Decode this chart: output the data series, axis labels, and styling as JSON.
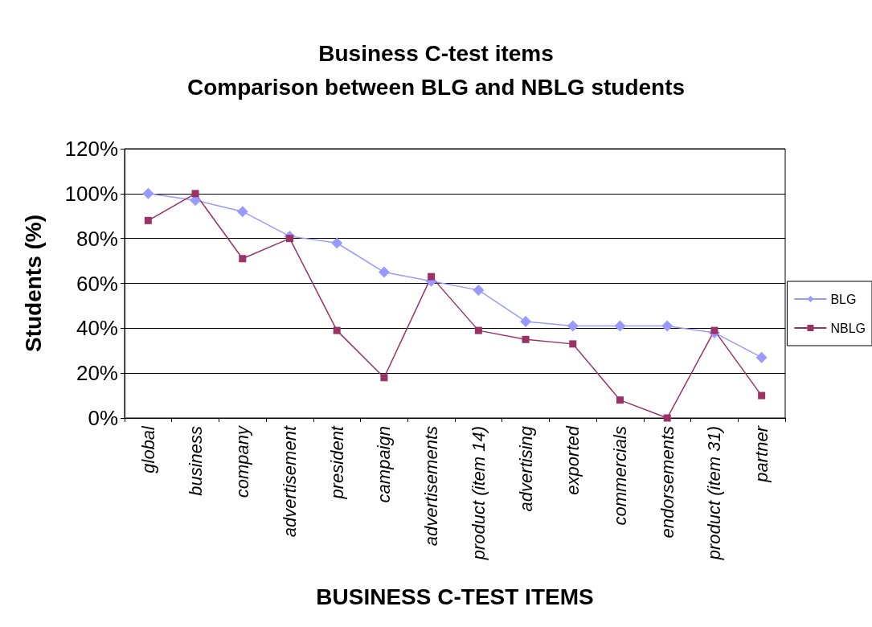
{
  "chart_data": {
    "type": "line",
    "title": "Business C-test items\nComparison between BLG and NBLG students",
    "xlabel": "BUSINESS C-TEST ITEMS",
    "ylabel": "Students (%)",
    "categories": [
      "global",
      "business",
      "company",
      "advertisement",
      "president",
      "campaign",
      "advertisements",
      "product (item 14)",
      "advertising",
      "exported",
      "commercials",
      "endorsements",
      "product (item 31)",
      "partner"
    ],
    "series": [
      {
        "name": "BLG",
        "color": "#9999ff",
        "marker": "diamond",
        "values": [
          100,
          97,
          92,
          81,
          78,
          65,
          61,
          57,
          43,
          41,
          41,
          41,
          38,
          27
        ]
      },
      {
        "name": "NBLG",
        "color": "#993366",
        "marker": "square",
        "values": [
          88,
          100,
          71,
          80,
          39,
          18,
          63,
          39,
          35,
          33,
          8,
          0,
          39,
          10
        ]
      }
    ],
    "ylim": [
      0,
      120
    ],
    "yticks": [
      {
        "value": 0,
        "label": "0%"
      },
      {
        "value": 20,
        "label": "20%"
      },
      {
        "value": 40,
        "label": "40%"
      },
      {
        "value": 60,
        "label": "60%"
      },
      {
        "value": 80,
        "label": "80%"
      },
      {
        "value": 100,
        "label": "100%"
      },
      {
        "value": 120,
        "label": "120%"
      }
    ],
    "grid": "y",
    "legend": "right",
    "line_style": "solid"
  }
}
